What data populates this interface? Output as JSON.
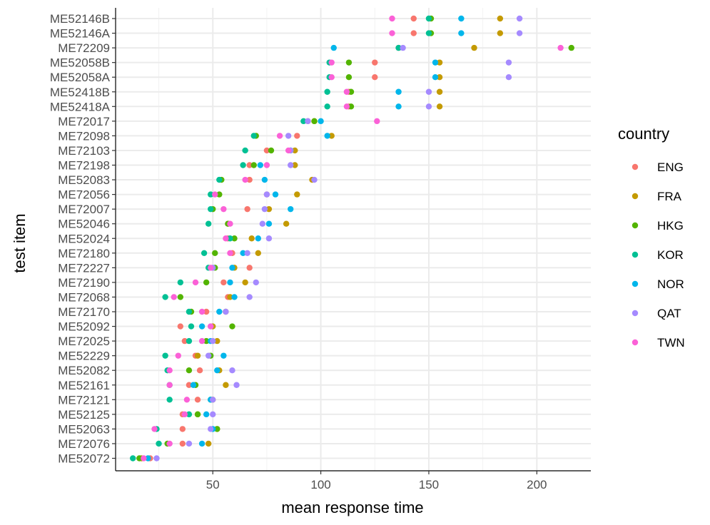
{
  "chart_data": {
    "type": "scatter",
    "title": "",
    "xlabel": "mean response time",
    "ylabel": "test item",
    "xlim": [
      5,
      225
    ],
    "x_ticks": [
      50,
      100,
      150,
      200
    ],
    "grid": true,
    "legend": {
      "title": "country",
      "position": "right"
    },
    "items": [
      "ME52146B",
      "ME52146A",
      "ME72209",
      "ME52058B",
      "ME52058A",
      "ME52418B",
      "ME52418A",
      "ME72017",
      "ME72098",
      "ME72103",
      "ME72198",
      "ME52083",
      "ME72056",
      "ME72007",
      "ME52046",
      "ME52024",
      "ME72180",
      "ME72227",
      "ME72190",
      "ME72068",
      "ME72170",
      "ME52092",
      "ME72025",
      "ME52229",
      "ME52082",
      "ME52161",
      "ME72121",
      "ME52125",
      "ME52063",
      "ME72076",
      "ME52072"
    ],
    "series": [
      {
        "name": "ENG",
        "color": "#F8766D",
        "values": [
          143,
          143,
          136,
          125,
          125,
          113,
          113,
          94,
          89,
          75,
          67,
          67,
          75,
          66,
          57,
          57,
          59,
          67,
          55,
          57,
          47,
          35,
          37,
          42,
          44,
          39,
          43,
          36,
          36,
          36,
          21
        ]
      },
      {
        "name": "FRA",
        "color": "#C49A00",
        "values": [
          183,
          183,
          171,
          155,
          155,
          155,
          155,
          97,
          105,
          88,
          88,
          96,
          89,
          76,
          84,
          68,
          71,
          60,
          65,
          58,
          56,
          50,
          52,
          43,
          53,
          56,
          50,
          43,
          52,
          48,
          17
        ]
      },
      {
        "name": "HKG",
        "color": "#53B400",
        "values": [
          151,
          151,
          216,
          113,
          113,
          114,
          114,
          97,
          70,
          77,
          69,
          54,
          53,
          50,
          57,
          60,
          51,
          51,
          47,
          35,
          40,
          59,
          47,
          49,
          39,
          42,
          49,
          43,
          52,
          29,
          16
        ]
      },
      {
        "name": "KOR",
        "color": "#00C094",
        "values": [
          150,
          150,
          136,
          104,
          104,
          103,
          103,
          92,
          69,
          65,
          64,
          53,
          49,
          49,
          48,
          58,
          46,
          48,
          35,
          28,
          39,
          40,
          39,
          28,
          29,
          30,
          30,
          39,
          24,
          25,
          13
        ]
      },
      {
        "name": "NOR",
        "color": "#00B6EB",
        "values": [
          165,
          165,
          106,
          153,
          153,
          136,
          136,
          100,
          103,
          86,
          72,
          74,
          79,
          86,
          76,
          71,
          64,
          59,
          58,
          60,
          53,
          45,
          49,
          55,
          52,
          41,
          49,
          47,
          50,
          45,
          20
        ]
      },
      {
        "name": "QAT",
        "color": "#A58AFF",
        "values": [
          192,
          192,
          138,
          187,
          187,
          150,
          150,
          94,
          85,
          86,
          86,
          97,
          75,
          74,
          73,
          76,
          66,
          50,
          70,
          67,
          56,
          49,
          50,
          48,
          59,
          61,
          50,
          50,
          49,
          39,
          24
        ]
      },
      {
        "name": "TWN",
        "color": "#FB61D7",
        "values": [
          133,
          133,
          211,
          105,
          105,
          112,
          112,
          126,
          81,
          85,
          75,
          65,
          51,
          55,
          58,
          56,
          58,
          49,
          42,
          32,
          45,
          49,
          45,
          34,
          30,
          30,
          38,
          37,
          23,
          30,
          18
        ]
      }
    ]
  }
}
